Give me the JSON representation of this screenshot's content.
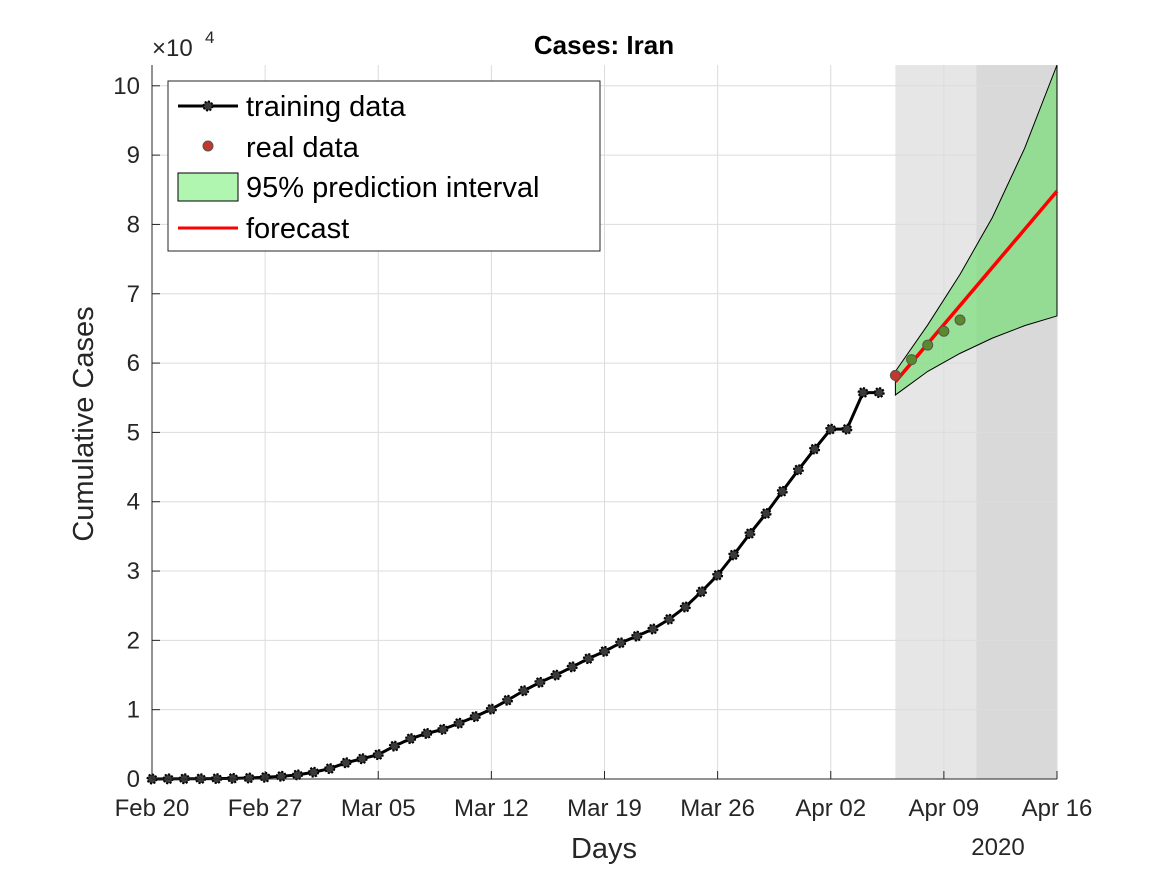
{
  "chart_data": {
    "type": "line",
    "title": "Cases: Iran",
    "xlabel": "Days",
    "ylabel": "Cumulative Cases",
    "y_exponent_label": "×10",
    "y_exponent_power": "4",
    "year_label": "2020",
    "x_range": [
      "2020-02-20",
      "2020-04-16"
    ],
    "ylim": [
      0,
      103000
    ],
    "y_tick_values": [
      0,
      10000,
      20000,
      30000,
      40000,
      50000,
      60000,
      70000,
      80000,
      90000,
      100000
    ],
    "y_tick_labels": [
      "0",
      "1",
      "2",
      "3",
      "4",
      "5",
      "6",
      "7",
      "8",
      "9",
      "10"
    ],
    "x_tick_dates": [
      "2020-02-20",
      "2020-02-27",
      "2020-03-05",
      "2020-03-12",
      "2020-03-19",
      "2020-03-26",
      "2020-04-02",
      "2020-04-09",
      "2020-04-16"
    ],
    "x_tick_labels": [
      "Feb 20",
      "Feb 27",
      "Mar 05",
      "Mar 12",
      "Mar 19",
      "Mar 26",
      "Apr 02",
      "Apr 09",
      "Apr 16"
    ],
    "grid": true,
    "legend_placement": "top-left",
    "shaded_regions": [
      {
        "start": "2020-04-06",
        "end": "2020-04-11",
        "color": "#e6e6e6"
      },
      {
        "start": "2020-04-11",
        "end": "2020-04-16",
        "color": "#d9d9d9"
      }
    ],
    "series": [
      {
        "name": "training data",
        "kind": "line-markers",
        "color": "#000000",
        "x": [
          "2020-02-20",
          "2020-02-21",
          "2020-02-22",
          "2020-02-23",
          "2020-02-24",
          "2020-02-25",
          "2020-02-26",
          "2020-02-27",
          "2020-02-28",
          "2020-02-29",
          "2020-03-01",
          "2020-03-02",
          "2020-03-03",
          "2020-03-04",
          "2020-03-05",
          "2020-03-06",
          "2020-03-07",
          "2020-03-08",
          "2020-03-09",
          "2020-03-10",
          "2020-03-11",
          "2020-03-12",
          "2020-03-13",
          "2020-03-14",
          "2020-03-15",
          "2020-03-16",
          "2020-03-17",
          "2020-03-18",
          "2020-03-19",
          "2020-03-20",
          "2020-03-21",
          "2020-03-22",
          "2020-03-23",
          "2020-03-24",
          "2020-03-25",
          "2020-03-26",
          "2020-03-27",
          "2020-03-28",
          "2020-03-29",
          "2020-03-30",
          "2020-03-31",
          "2020-04-01",
          "2020-04-02",
          "2020-04-03",
          "2020-04-04",
          "2020-04-05"
        ],
        "y": [
          5,
          18,
          28,
          43,
          61,
          95,
          139,
          245,
          388,
          593,
          978,
          1501,
          2336,
          2922,
          3513,
          4747,
          5823,
          6566,
          7161,
          8042,
          9000,
          10075,
          11364,
          12729,
          13938,
          14991,
          16169,
          17361,
          18407,
          19644,
          20610,
          21638,
          23049,
          24811,
          27017,
          29406,
          32332,
          35408,
          38309,
          41495,
          44605,
          47593,
          50468,
          50468,
          55743,
          55743
        ]
      },
      {
        "name": "real data",
        "kind": "markers",
        "color": "#c0392b",
        "x": [
          "2020-04-06",
          "2020-04-07",
          "2020-04-08",
          "2020-04-09",
          "2020-04-10"
        ],
        "y": [
          58226,
          60500,
          62589,
          64586,
          66220
        ]
      },
      {
        "name": "95% prediction interval",
        "kind": "band",
        "color": "#66dd66",
        "x": [
          "2020-04-06",
          "2020-04-08",
          "2020-04-10",
          "2020-04-12",
          "2020-04-14",
          "2020-04-16"
        ],
        "lower": [
          55400,
          58800,
          61400,
          63600,
          65400,
          66800
        ],
        "upper": [
          58800,
          65500,
          72800,
          81000,
          91000,
          103000
        ]
      },
      {
        "name": "forecast",
        "kind": "line",
        "color": "#ff0000",
        "x": [
          "2020-04-06",
          "2020-04-16"
        ],
        "y": [
          57300,
          84800
        ]
      }
    ]
  }
}
